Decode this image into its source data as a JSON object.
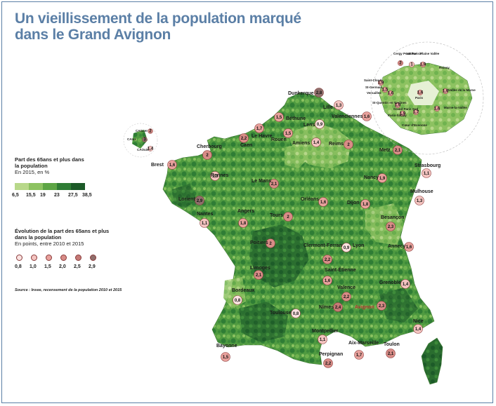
{
  "title": {
    "line1": "Un vieillissement de la population marqué",
    "line2": "dans le Grand Avignon"
  },
  "legend_share": {
    "heading_l1": "Part des 65ans et plus dans",
    "heading_l2": "la population",
    "subtitle": "En 2015, en %",
    "classes": [
      {
        "color": "#b8d88a"
      },
      {
        "color": "#8dc261"
      },
      {
        "color": "#5da545"
      },
      {
        "color": "#2f7d35"
      },
      {
        "color": "#1c5a28"
      }
    ],
    "ticks": [
      "6,5",
      "15,5",
      "19",
      "23",
      "27,5",
      "38,5"
    ]
  },
  "legend_evolution": {
    "heading_l1": "Évolution de la part des 65ans et plus",
    "heading_l2": "dans la population",
    "subtitle": "En points, entre 2010 et 2015",
    "circles": [
      {
        "label": "0,8",
        "color": "#fbe3e1"
      },
      {
        "label": "1,0",
        "color": "#f4c4c0"
      },
      {
        "label": "1,5",
        "color": "#e8a19c"
      },
      {
        "label": "2,0",
        "color": "#d88c87"
      },
      {
        "label": "2,5",
        "color": "#c57a76"
      },
      {
        "label": "2,9",
        "color": "#8f6f6c"
      }
    ]
  },
  "source": "Source : Insee, recensement de la population 2010 et 2015",
  "cities": [
    {
      "name": "Dunkerque",
      "value": "2,8",
      "color": "#8f6f6c"
    },
    {
      "name": "Lille",
      "value": "1,3",
      "color": "#f4c4c0"
    },
    {
      "name": "Valenciennes",
      "value": "1,6",
      "color": "#e8a19c"
    },
    {
      "name": "Béthune",
      "value": "1,5",
      "color": "#e8a19c"
    },
    {
      "name": "Lens",
      "value": "0,9",
      "color": "#fbe3e1"
    },
    {
      "name": "Amiens",
      "value": "1,4",
      "color": "#f4c4c0"
    },
    {
      "name": "Rouen",
      "value": "1,5",
      "color": "#e8a19c"
    },
    {
      "name": "Le Havre",
      "value": "1,7",
      "color": "#e8a19c"
    },
    {
      "name": "Caen",
      "value": "2,2",
      "color": "#d88c87"
    },
    {
      "name": "Cherbourg",
      "value": "2",
      "color": "#d88c87"
    },
    {
      "name": "Reims",
      "value": "2",
      "color": "#d88c87"
    },
    {
      "name": "Metz",
      "value": "2,1",
      "color": "#d88c87"
    },
    {
      "name": "Strasbourg",
      "value": "1,1",
      "color": "#f4c4c0"
    },
    {
      "name": "Brest",
      "value": "1,6",
      "color": "#e8a19c"
    },
    {
      "name": "Rennes",
      "value": "1,3",
      "color": "#f4c4c0"
    },
    {
      "name": "Le Mans",
      "value": "2,1",
      "color": "#d88c87"
    },
    {
      "name": "Nancy",
      "value": "1,9",
      "color": "#e8a19c"
    },
    {
      "name": "Lorient",
      "value": "2,9",
      "color": "#8f6f6c"
    },
    {
      "name": "Orléans",
      "value": "1,6",
      "color": "#e8a19c"
    },
    {
      "name": "Dijon",
      "value": "1,8",
      "color": "#e8a19c"
    },
    {
      "name": "Mulhouse",
      "value": "1,3",
      "color": "#f4c4c0"
    },
    {
      "name": "Angers",
      "value": "1,8",
      "color": "#e8a19c"
    },
    {
      "name": "Nantes",
      "value": "1,1",
      "color": "#f4c4c0"
    },
    {
      "name": "Tours",
      "value": "2",
      "color": "#d88c87"
    },
    {
      "name": "Besançon",
      "value": "2,3",
      "color": "#d88c87"
    },
    {
      "name": "Poitiers",
      "value": "2",
      "color": "#d88c87"
    },
    {
      "name": "Clermont-Ferrand",
      "value": "2,2",
      "color": "#d88c87"
    },
    {
      "name": "Lyon",
      "value": "0,9",
      "color": "#fbe3e1"
    },
    {
      "name": "Annecy",
      "value": "1,6",
      "color": "#e8a19c"
    },
    {
      "name": "Limoges",
      "value": "2,1",
      "color": "#d88c87"
    },
    {
      "name": "Saint-Étienne",
      "value": "1,6",
      "color": "#e8a19c"
    },
    {
      "name": "Valence",
      "value": "2,2",
      "color": "#d88c87"
    },
    {
      "name": "Grenoble",
      "value": "1,4",
      "color": "#f4c4c0"
    },
    {
      "name": "Bordeaux",
      "value": "0,8",
      "color": "#fbe3e1"
    },
    {
      "name": "Toulouse",
      "value": "0,8",
      "color": "#fbe3e1"
    },
    {
      "name": "Nîmes",
      "value": "2,4",
      "color": "#c57a76"
    },
    {
      "name": "Avignon",
      "value": "2,3",
      "color": "#d88c87"
    },
    {
      "name": "Nice",
      "value": "1,4",
      "color": "#f4c4c0"
    },
    {
      "name": "Montpellier",
      "value": "1,1",
      "color": "#f4c4c0"
    },
    {
      "name": "Aix-Marseille",
      "value": "1,7",
      "color": "#e8a19c"
    },
    {
      "name": "Toulon",
      "value": "2,1",
      "color": "#d88c87"
    },
    {
      "name": "Bayonne",
      "value": "1,5",
      "color": "#e8a19c"
    },
    {
      "name": "Perpignan",
      "value": "2,2",
      "color": "#d88c87"
    }
  ],
  "inset_west": [
    {
      "name": "CAGuer",
      "value": "2",
      "color": "#d88c87"
    },
    {
      "name": "CAIuz",
      "value": "3",
      "color": "#8f6f6c"
    },
    {
      "name": "CAOuis",
      "value": "1,4",
      "color": "#f4c4c0"
    }
  ],
  "inset_paris": [
    {
      "name": "Cergy Pontoise",
      "value": "2",
      "color": "#d88c87"
    },
    {
      "name": "Val Parisis",
      "value": "1",
      "color": "#f4c4c0"
    },
    {
      "name": "Plaine Vallée",
      "value": "1,9",
      "color": "#e8a19c"
    },
    {
      "name": "Roissy",
      "value": "",
      "color": "#e8a19c"
    },
    {
      "name": "Saint-Cloud",
      "value": "1,9",
      "color": "#e8a19c"
    },
    {
      "name": "St-Germain",
      "value": "1,5",
      "color": "#e8a19c"
    },
    {
      "name": "Versailles",
      "value": "1,6",
      "color": "#e8a19c"
    },
    {
      "name": "Paris",
      "value": "1,6",
      "color": "#e8a19c"
    },
    {
      "name": "Vallée de la Marne",
      "value": "1,9",
      "color": "#e8a19c"
    },
    {
      "name": "St-Quentin en Yvelines",
      "value": "1,9",
      "color": "#e8a19c"
    },
    {
      "name": "Grand Paris Sud",
      "value": "1,7",
      "color": "#e8a19c"
    },
    {
      "name": "Marne-la-Vallée",
      "value": "1,6",
      "color": "#e8a19c"
    },
    {
      "name": "Paris-Saclay",
      "value": "1,9",
      "color": "#e8a19c"
    },
    {
      "name": "Cœur d'Essonne",
      "value": "",
      "color": "#e8a19c"
    }
  ]
}
